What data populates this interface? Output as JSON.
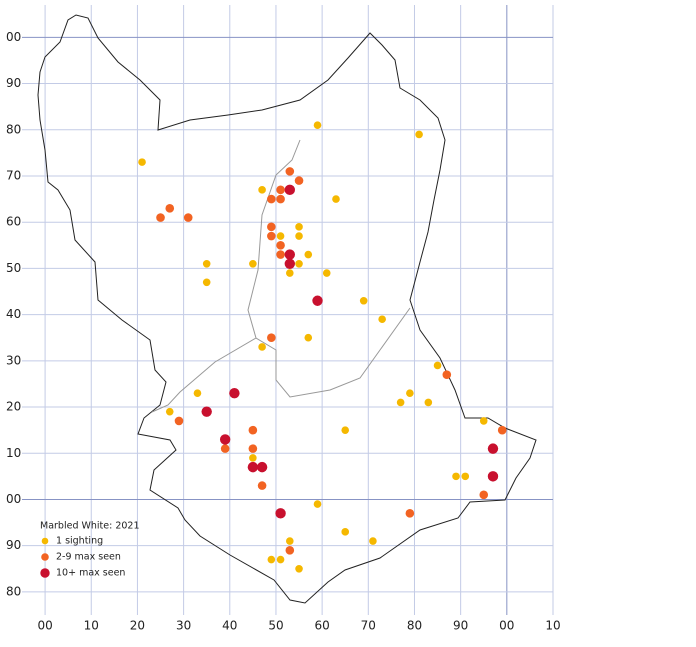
{
  "chart_data": {
    "type": "scatter",
    "title": "Marbled White:  2021",
    "xlim": [
      -5,
      110
    ],
    "ylim": [
      75,
      207
    ],
    "xticks": [
      {
        "value": 0,
        "label": "00"
      },
      10,
      20,
      30,
      40,
      50,
      60,
      70,
      80,
      90,
      {
        "value": 100,
        "label": "00"
      },
      {
        "value": 110,
        "label": "10"
      }
    ],
    "yticks": [
      80,
      90,
      {
        "value": 100,
        "label": "00"
      },
      {
        "value": 110,
        "label": "10"
      },
      {
        "value": 120,
        "label": "20"
      },
      {
        "value": 130,
        "label": "30"
      },
      {
        "value": 140,
        "label": "40"
      },
      {
        "value": 150,
        "label": "50"
      },
      {
        "value": 160,
        "label": "60"
      },
      {
        "value": 170,
        "label": "70"
      },
      {
        "value": 180,
        "label": "80"
      },
      {
        "value": 190,
        "label": "90"
      },
      {
        "value": 200,
        "label": "00"
      }
    ],
    "grid": true,
    "series": [
      {
        "name": "1 sighting",
        "color": "#f5b800",
        "x": [
          59,
          81,
          21,
          47,
          63,
          55,
          55,
          51,
          57,
          45,
          55,
          35,
          61,
          53,
          35,
          69,
          73,
          57,
          47,
          85,
          79,
          33,
          77,
          83,
          27,
          95,
          65,
          45,
          89,
          91,
          59,
          65,
          53,
          71,
          49,
          51,
          55
        ],
        "y": [
          181,
          179,
          173,
          167,
          165,
          159,
          157,
          157,
          153,
          151,
          151,
          151,
          149,
          149,
          147,
          143,
          139,
          135,
          133,
          129,
          123,
          123,
          121,
          121,
          119,
          117,
          115,
          109,
          105,
          105,
          99,
          93,
          91,
          91,
          87,
          87,
          85
        ]
      },
      {
        "name": "2-9 max seen",
        "color": "#f26322",
        "x": [
          53,
          55,
          51,
          27,
          49,
          51,
          25,
          31,
          49,
          49,
          51,
          51,
          49,
          87,
          29,
          45,
          99,
          45,
          39,
          47,
          95,
          79,
          53
        ],
        "y": [
          171,
          169,
          167,
          163,
          165,
          165,
          161,
          161,
          159,
          157,
          155,
          153,
          135,
          127,
          117,
          115,
          115,
          111,
          111,
          103,
          101,
          97,
          89
        ]
      },
      {
        "name": "10+ max seen",
        "color": "#c8102e",
        "x": [
          53,
          53,
          53,
          59,
          41,
          35,
          39,
          97,
          45,
          47,
          97,
          51
        ],
        "y": [
          167,
          153,
          151,
          143,
          123,
          119,
          113,
          111,
          107,
          107,
          105,
          97
        ]
      }
    ]
  }
}
